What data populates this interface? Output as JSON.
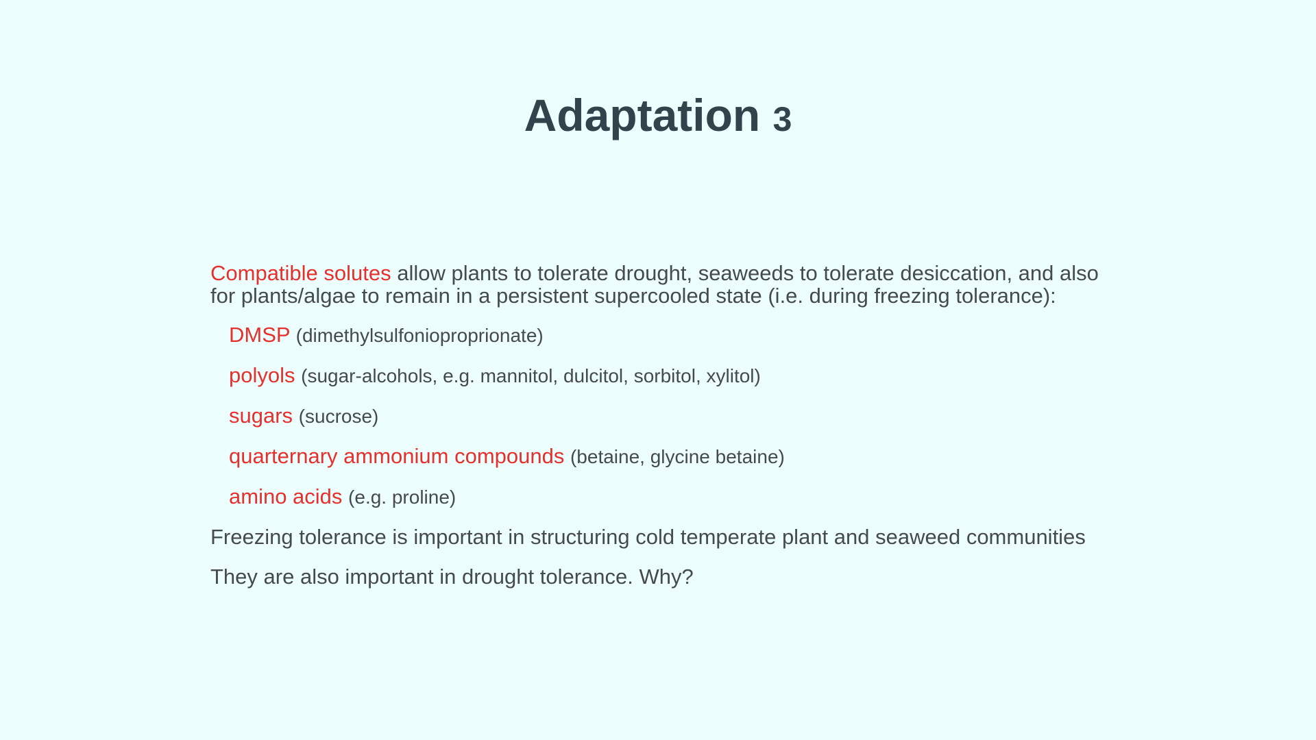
{
  "slide": {
    "title": "Adaptation",
    "title_number": "3",
    "intro": {
      "highlight": "Compatible solutes",
      "text": " allow plants to tolerate drought, seaweeds to tolerate desiccation, and also for plants/algae to remain in a persistent supercooled state (i.e. during freezing tolerance):"
    },
    "items": [
      {
        "term": "DMSP",
        "detail": "(dimethylsulfonioproprionate)"
      },
      {
        "term": "polyols",
        "detail": "(sugar-alcohols, e.g. mannitol, dulcitol, sorbitol, xylitol)"
      },
      {
        "term": "sugars",
        "detail": "(sucrose)"
      },
      {
        "term": "quarternary ammonium compounds",
        "detail": "(betaine, glycine betaine)"
      },
      {
        "term": "amino acids",
        "detail": "(e.g. proline)"
      }
    ],
    "paragraph_1": "Freezing tolerance is important in structuring cold temperate plant and seaweed communities",
    "paragraph_2": "They are also important in drought tolerance. Why?"
  },
  "colors": {
    "background": "#ecfefe",
    "title": "#33434c",
    "body_text": "#454a4e",
    "highlight": "#e5302c"
  }
}
